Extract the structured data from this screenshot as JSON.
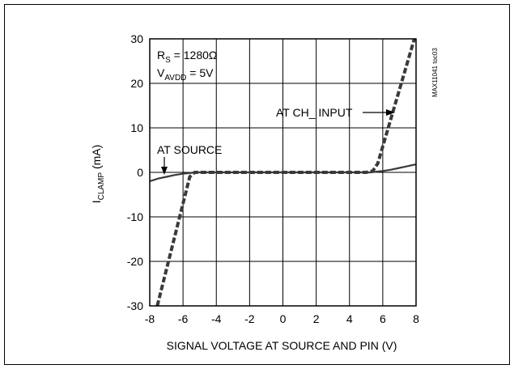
{
  "chart_data": {
    "type": "line",
    "title": "",
    "xlabel": "SIGNAL VOLTAGE AT SOURCE AND PIN (V)",
    "ylabel": {
      "main": "I",
      "sub": "CLAMP",
      "unit": " (mA)"
    },
    "xlim": [
      -8,
      8
    ],
    "ylim": [
      -30,
      30
    ],
    "xticks": [
      -8,
      -6,
      -4,
      -2,
      0,
      2,
      4,
      6,
      8
    ],
    "yticks": [
      -30,
      -20,
      -10,
      0,
      10,
      20,
      30
    ],
    "xtick_labels": [
      "-8",
      "-6",
      "-4",
      "-2",
      "0",
      "2",
      "4",
      "6",
      "8"
    ],
    "ytick_labels": [
      "-30",
      "-20",
      "-10",
      "0",
      "10",
      "20",
      "30"
    ],
    "grid": true,
    "series": [
      {
        "name": "AT SOURCE",
        "style": "solid",
        "color": "#3a3a3a",
        "x": [
          -8,
          -7.5,
          -7,
          -6.5,
          -6,
          -5.5,
          -5.3,
          -5,
          -4,
          0,
          4,
          5,
          5.3,
          5.5,
          6,
          6.5,
          7,
          7.5,
          8
        ],
        "y": [
          -2.0,
          -1.4,
          -1.0,
          -0.6,
          -0.3,
          -0.1,
          0,
          0,
          0,
          0,
          0,
          0,
          0,
          0.1,
          0.3,
          0.6,
          1.0,
          1.4,
          1.8
        ]
      },
      {
        "name": "AT CH_ INPUT",
        "style": "dashed",
        "color": "#3a3a3a",
        "x": [
          -7.55,
          -5.6,
          -5.3,
          -5,
          -4,
          0,
          4,
          5,
          5.4,
          5.7,
          7.9
        ],
        "y": [
          -30,
          -1.0,
          0,
          0,
          0,
          0,
          0,
          0,
          0.3,
          2.0,
          30
        ]
      }
    ],
    "annotations": {
      "rs": {
        "main": "R",
        "sub": "S",
        "rest": " = 1280Ω"
      },
      "vavdd": {
        "main": "V",
        "sub": "AVDD",
        "rest": " = 5V"
      },
      "at_source": "AT SOURCE",
      "at_ch_input": "AT CH_ INPUT",
      "figure_id": "MAX11041 toc03"
    }
  }
}
